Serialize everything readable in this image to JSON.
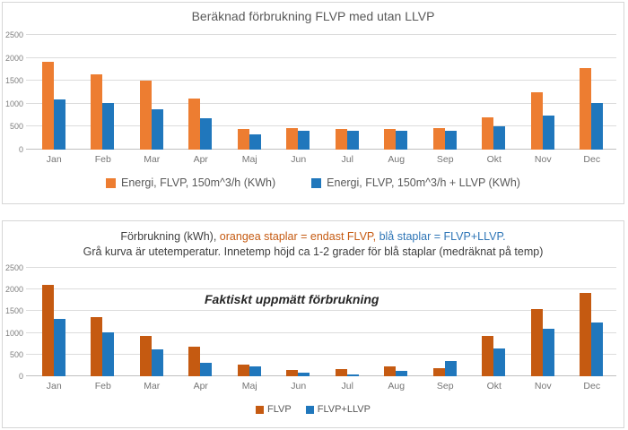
{
  "colors": {
    "orange_top": "#ED7D31",
    "orange_bottom": "#C55A11",
    "blue": "#2077BC",
    "grid": "#DCDCDC",
    "axis_text": "#7F7F7F",
    "title_text": "#595959",
    "header_orange": "#C55A11",
    "header_blue": "#2E75B6"
  },
  "chart_data": [
    {
      "type": "bar",
      "title": "Beräknad förbrukning FLVP med utan LLVP",
      "categories": [
        "Jan",
        "Feb",
        "Mar",
        "Apr",
        "Maj",
        "Jun",
        "Jul",
        "Aug",
        "Sep",
        "Okt",
        "Nov",
        "Dec"
      ],
      "series": [
        {
          "name": "Energi, FLVP, 150m^3/h (KWh)",
          "color": "#ED7D31",
          "values": [
            1920,
            1650,
            1510,
            1120,
            450,
            470,
            450,
            450,
            470,
            700,
            1260,
            1780
          ]
        },
        {
          "name": "Energi, FLVP, 150m^3/h + LLVP (KWh)",
          "color": "#2077BC",
          "values": [
            1090,
            1020,
            870,
            680,
            340,
            410,
            410,
            410,
            410,
            500,
            740,
            1020
          ]
        }
      ],
      "ylim": [
        0,
        2500
      ],
      "y_ticks": [
        0,
        500,
        1000,
        1500,
        2000,
        2500
      ],
      "grid": true,
      "legend_position": "bottom"
    },
    {
      "type": "bar",
      "header_line1_prefix": "Förbrukning (kWh), ",
      "header_line1_orange": "orangea staplar = endast FLVP,",
      "header_line1_blue": " blå staplar = FLVP+LLVP.",
      "header_line2": "Grå kurva är utetemperatur. Innetemp höjd ca 1-2 grader för blå staplar (medräknat på temp)",
      "annotation": "Faktiskt uppmätt förbrukning",
      "categories": [
        "Jan",
        "Feb",
        "Mar",
        "Apr",
        "Maj",
        "Jun",
        "Jul",
        "Aug",
        "Sep",
        "Okt",
        "Nov",
        "Dec"
      ],
      "series": [
        {
          "name": "FLVP",
          "color": "#C55A11",
          "values": [
            2110,
            1360,
            920,
            680,
            270,
            150,
            170,
            230,
            190,
            930,
            1540,
            1920
          ]
        },
        {
          "name": "FLVP+LLVP",
          "color": "#2077BC",
          "values": [
            1330,
            1020,
            630,
            300,
            220,
            90,
            50,
            130,
            350,
            650,
            1100,
            1250
          ]
        }
      ],
      "ylim": [
        0,
        2500
      ],
      "y_ticks": [
        0,
        500,
        1000,
        1500,
        2000,
        2500
      ],
      "grid": true,
      "legend_position": "bottom"
    }
  ]
}
